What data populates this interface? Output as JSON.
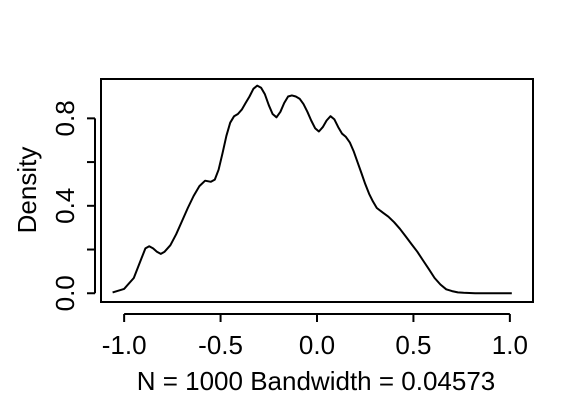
{
  "chart_data": {
    "type": "line",
    "title": "",
    "xlabel": "N = 1000   Bandwidth = 0.04573",
    "ylabel": "Density",
    "xlim": [
      -1.12,
      1.12
    ],
    "ylim": [
      -0.04,
      0.98
    ],
    "x_ticks": [
      -1.0,
      -0.5,
      0.0,
      0.5,
      1.0
    ],
    "x_tick_labels": [
      "-1.0",
      "-0.5",
      "0.0",
      "0.5",
      "1.0"
    ],
    "y_ticks": [
      0.0,
      0.2,
      0.4,
      0.6,
      0.8
    ],
    "y_tick_labels": [
      "0.0",
      "",
      "0.4",
      "",
      "0.8"
    ],
    "grid": false,
    "series": [
      {
        "name": "density",
        "color": "#000000",
        "x": [
          -1.06,
          -1.0,
          -0.95,
          -0.91,
          -0.89,
          -0.87,
          -0.85,
          -0.83,
          -0.81,
          -0.79,
          -0.76,
          -0.73,
          -0.7,
          -0.67,
          -0.64,
          -0.61,
          -0.58,
          -0.55,
          -0.53,
          -0.51,
          -0.49,
          -0.47,
          -0.45,
          -0.43,
          -0.41,
          -0.39,
          -0.37,
          -0.35,
          -0.33,
          -0.31,
          -0.29,
          -0.27,
          -0.25,
          -0.23,
          -0.21,
          -0.19,
          -0.17,
          -0.15,
          -0.13,
          -0.11,
          -0.09,
          -0.07,
          -0.05,
          -0.03,
          -0.01,
          0.01,
          0.03,
          0.05,
          0.07,
          0.09,
          0.11,
          0.13,
          0.15,
          0.17,
          0.19,
          0.21,
          0.23,
          0.25,
          0.27,
          0.29,
          0.31,
          0.34,
          0.37,
          0.4,
          0.43,
          0.46,
          0.49,
          0.52,
          0.55,
          0.58,
          0.61,
          0.64,
          0.67,
          0.7,
          0.73,
          0.76,
          0.79,
          0.82,
          0.85,
          0.88,
          0.91,
          0.94,
          0.97,
          1.01
        ],
        "y": [
          0.004,
          0.02,
          0.07,
          0.16,
          0.205,
          0.215,
          0.205,
          0.19,
          0.18,
          0.19,
          0.22,
          0.27,
          0.33,
          0.39,
          0.445,
          0.49,
          0.515,
          0.51,
          0.52,
          0.565,
          0.64,
          0.72,
          0.78,
          0.81,
          0.82,
          0.84,
          0.87,
          0.9,
          0.935,
          0.95,
          0.94,
          0.91,
          0.86,
          0.82,
          0.805,
          0.83,
          0.87,
          0.9,
          0.905,
          0.9,
          0.89,
          0.865,
          0.83,
          0.79,
          0.755,
          0.74,
          0.76,
          0.79,
          0.81,
          0.795,
          0.76,
          0.73,
          0.715,
          0.69,
          0.65,
          0.6,
          0.55,
          0.5,
          0.455,
          0.42,
          0.39,
          0.37,
          0.35,
          0.325,
          0.295,
          0.26,
          0.225,
          0.19,
          0.15,
          0.11,
          0.07,
          0.04,
          0.018,
          0.01,
          0.004,
          0.002,
          0.001,
          0.0,
          0.0,
          0.0,
          0.0,
          0.0,
          0.0,
          0.0
        ]
      }
    ]
  }
}
